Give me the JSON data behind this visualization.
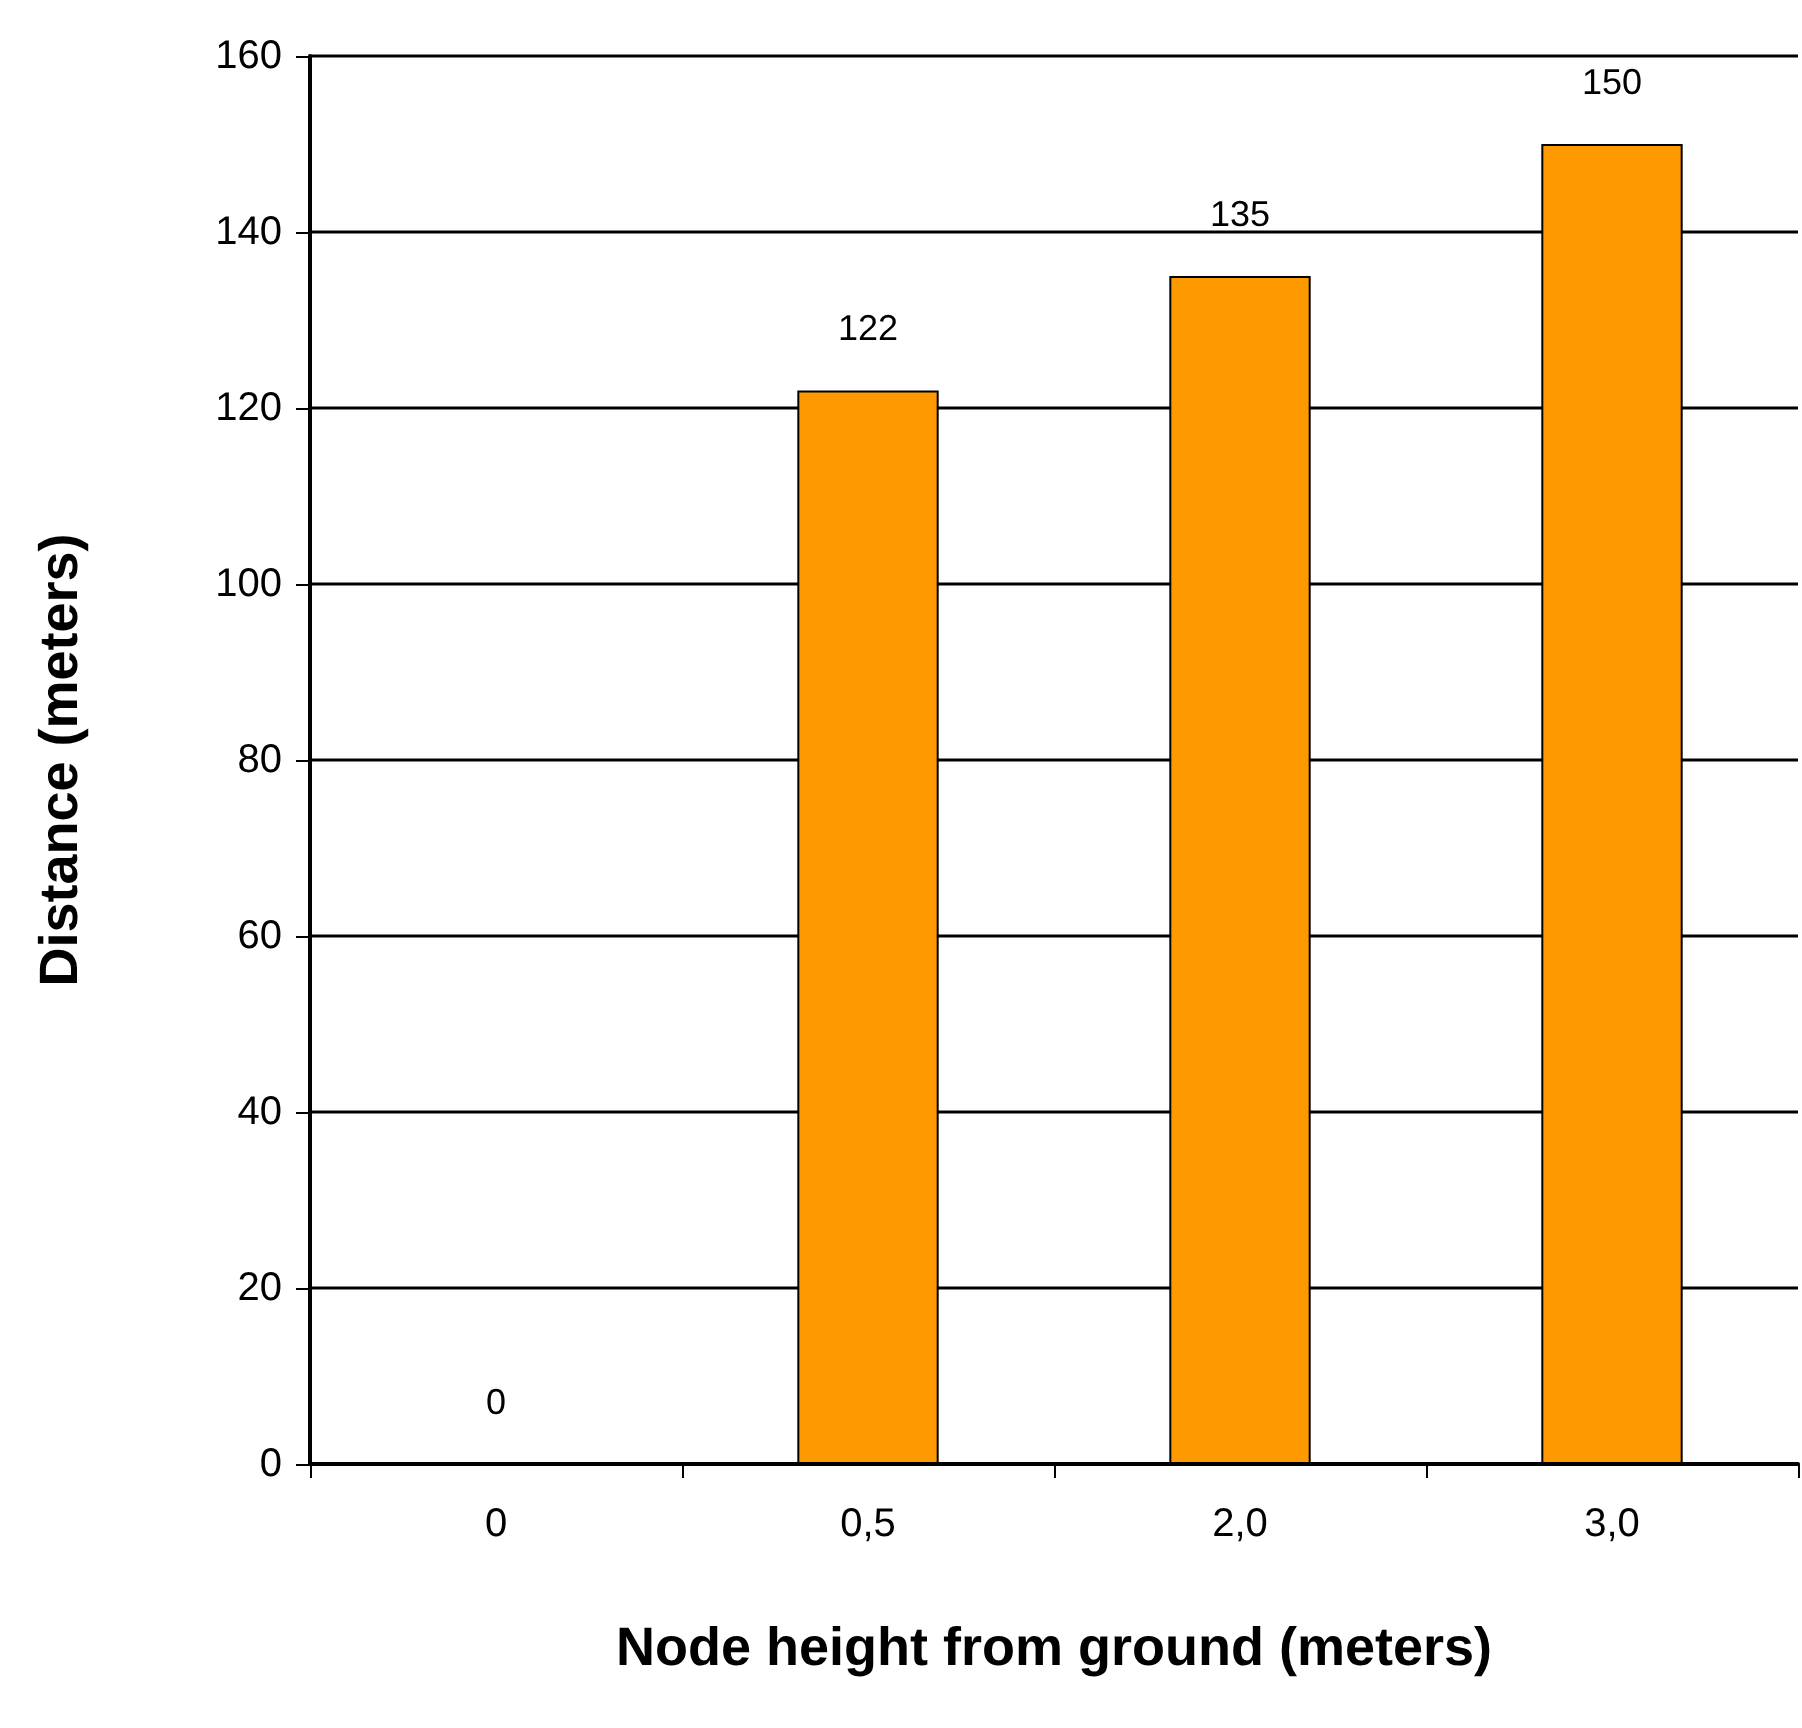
{
  "chart_data": {
    "type": "bar",
    "xlabel": "Node height from ground (meters)",
    "ylabel": "Distance (meters)",
    "categories": [
      "0",
      "0,5",
      "2,0",
      "3,0"
    ],
    "values": [
      0,
      122,
      135,
      150
    ],
    "color": "#ff9900",
    "ylim": [
      0,
      160
    ],
    "yticks": [
      0,
      20,
      40,
      60,
      80,
      100,
      120,
      140,
      160
    ],
    "grid": "y",
    "data_labels": true
  }
}
